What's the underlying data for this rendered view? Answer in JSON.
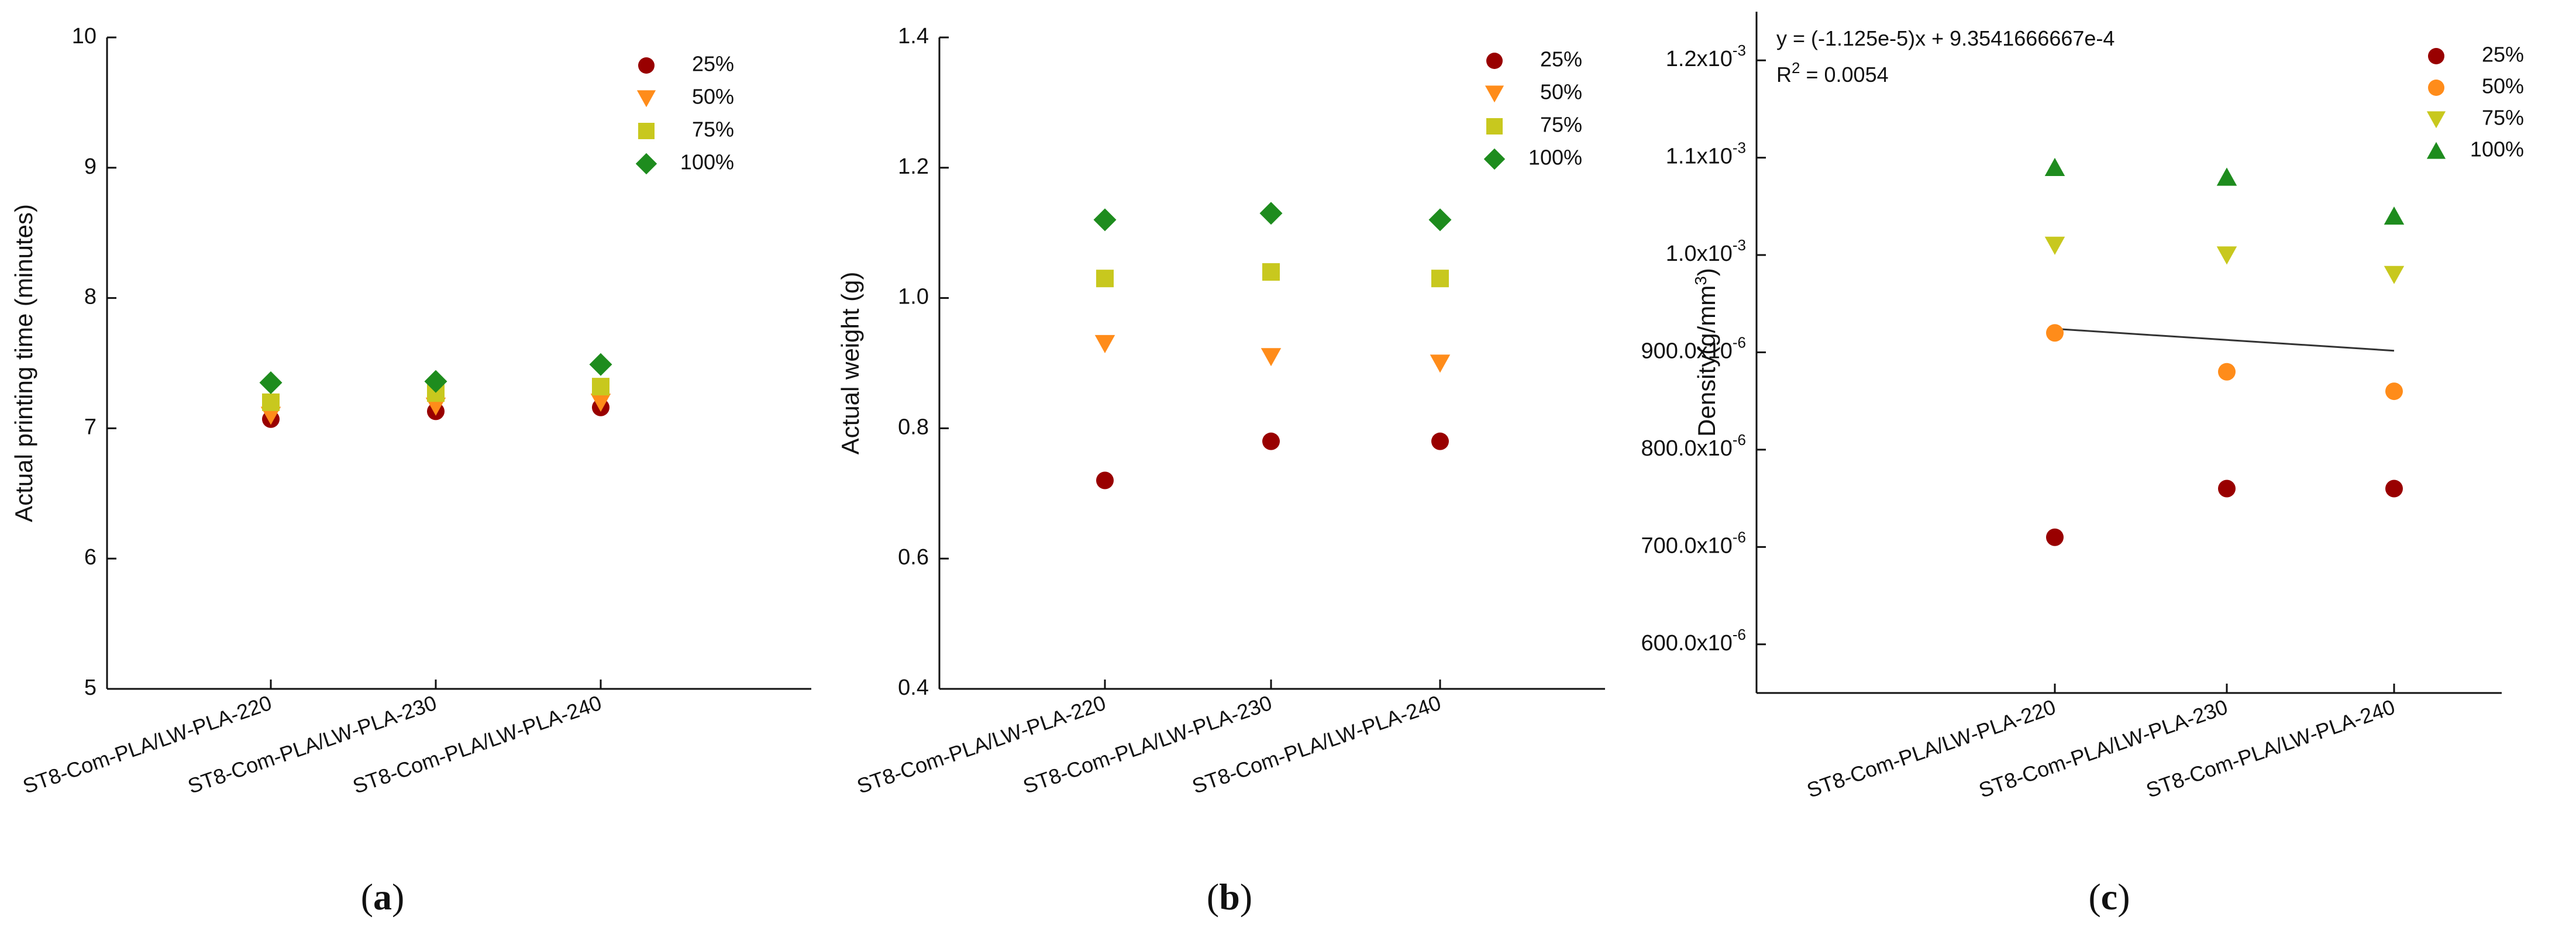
{
  "colors": {
    "p25": "#990000",
    "p50a": "#ff8c1a",
    "p50c": "#ff8c1a",
    "p75ab": "#c8c81e",
    "p75c": "#c8c81e",
    "p100": "#1e8c1e",
    "axis": "#111111",
    "fit": "#333333"
  },
  "chart_data": [
    {
      "panel": "a",
      "type": "scatter",
      "subfigure_label": "(a)",
      "ylabel": "Actual printing time (minutes)",
      "ylim": [
        5,
        10
      ],
      "yticks": [
        "5",
        "6",
        "7",
        "8",
        "9",
        "10"
      ],
      "categories": [
        "ST8-Com-PLA/LW-PLA-220",
        "ST8-Com-PLA/LW-PLA-230",
        "ST8-Com-PLA/LW-PLA-240"
      ],
      "series": [
        {
          "name": "25%",
          "marker": "circle",
          "color_key": "p25",
          "values": [
            7.07,
            7.13,
            7.16
          ]
        },
        {
          "name": "50%",
          "marker": "triangle-down",
          "color_key": "p50a",
          "values": [
            7.1,
            7.17,
            7.2
          ]
        },
        {
          "name": "75%",
          "marker": "square",
          "color_key": "p75ab",
          "values": [
            7.2,
            7.27,
            7.32
          ]
        },
        {
          "name": "100%",
          "marker": "diamond",
          "color_key": "p100",
          "values": [
            7.35,
            7.36,
            7.49
          ]
        }
      ]
    },
    {
      "panel": "b",
      "type": "scatter",
      "subfigure_label": "(b)",
      "ylabel": "Actual weight (g)",
      "ylim": [
        0.4,
        1.4
      ],
      "yticks": [
        "0.4",
        "0.6",
        "0.8",
        "1.0",
        "1.2",
        "1.4"
      ],
      "categories": [
        "ST8-Com-PLA/LW-PLA-220",
        "ST8-Com-PLA/LW-PLA-230",
        "ST8-Com-PLA/LW-PLA-240"
      ],
      "series": [
        {
          "name": "25%",
          "marker": "circle",
          "color_key": "p25",
          "values": [
            0.72,
            0.78,
            0.78
          ]
        },
        {
          "name": "50%",
          "marker": "triangle-down",
          "color_key": "p50a",
          "values": [
            0.93,
            0.91,
            0.9
          ]
        },
        {
          "name": "75%",
          "marker": "square",
          "color_key": "p75ab",
          "values": [
            1.03,
            1.04,
            1.03
          ]
        },
        {
          "name": "100%",
          "marker": "diamond",
          "color_key": "p100",
          "values": [
            1.12,
            1.13,
            1.12
          ]
        }
      ]
    },
    {
      "panel": "c",
      "type": "scatter",
      "subfigure_label": "(c)",
      "ylabel": "Density(g/mm³)",
      "ylim": [
        0.00055,
        0.00125
      ],
      "yticks": [
        "600.0x10-6",
        "700.0x10-6",
        "800.0x10-6",
        "900.0x10-6",
        "1.0x10-3",
        "1.1x10-3",
        "1.2x10-3"
      ],
      "categories": [
        "ST8-Com-PLA/LW-PLA-220",
        "ST8-Com-PLA/LW-PLA-230",
        "ST8-Com-PLA/LW-PLA-240"
      ],
      "annotation_equation": "y = (-1.125e-5)x + 9.3541666667e-4",
      "annotation_r2": "R2 = 0.0054",
      "fit_line": {
        "slope": -1.125e-05,
        "intercept": 0.00093541666667
      },
      "series": [
        {
          "name": "25%",
          "marker": "circle",
          "color_key": "p25",
          "values": [
            0.00071,
            0.00076,
            0.00076
          ]
        },
        {
          "name": "50%",
          "marker": "circle",
          "color_key": "p50c",
          "values": [
            0.00092,
            0.00088,
            0.00086
          ]
        },
        {
          "name": "75%",
          "marker": "triangle-down",
          "color_key": "p75c",
          "values": [
            0.00101,
            0.001,
            0.00098
          ]
        },
        {
          "name": "100%",
          "marker": "triangle-up",
          "color_key": "p100",
          "values": [
            0.00109,
            0.00108,
            0.00104
          ]
        }
      ]
    }
  ]
}
